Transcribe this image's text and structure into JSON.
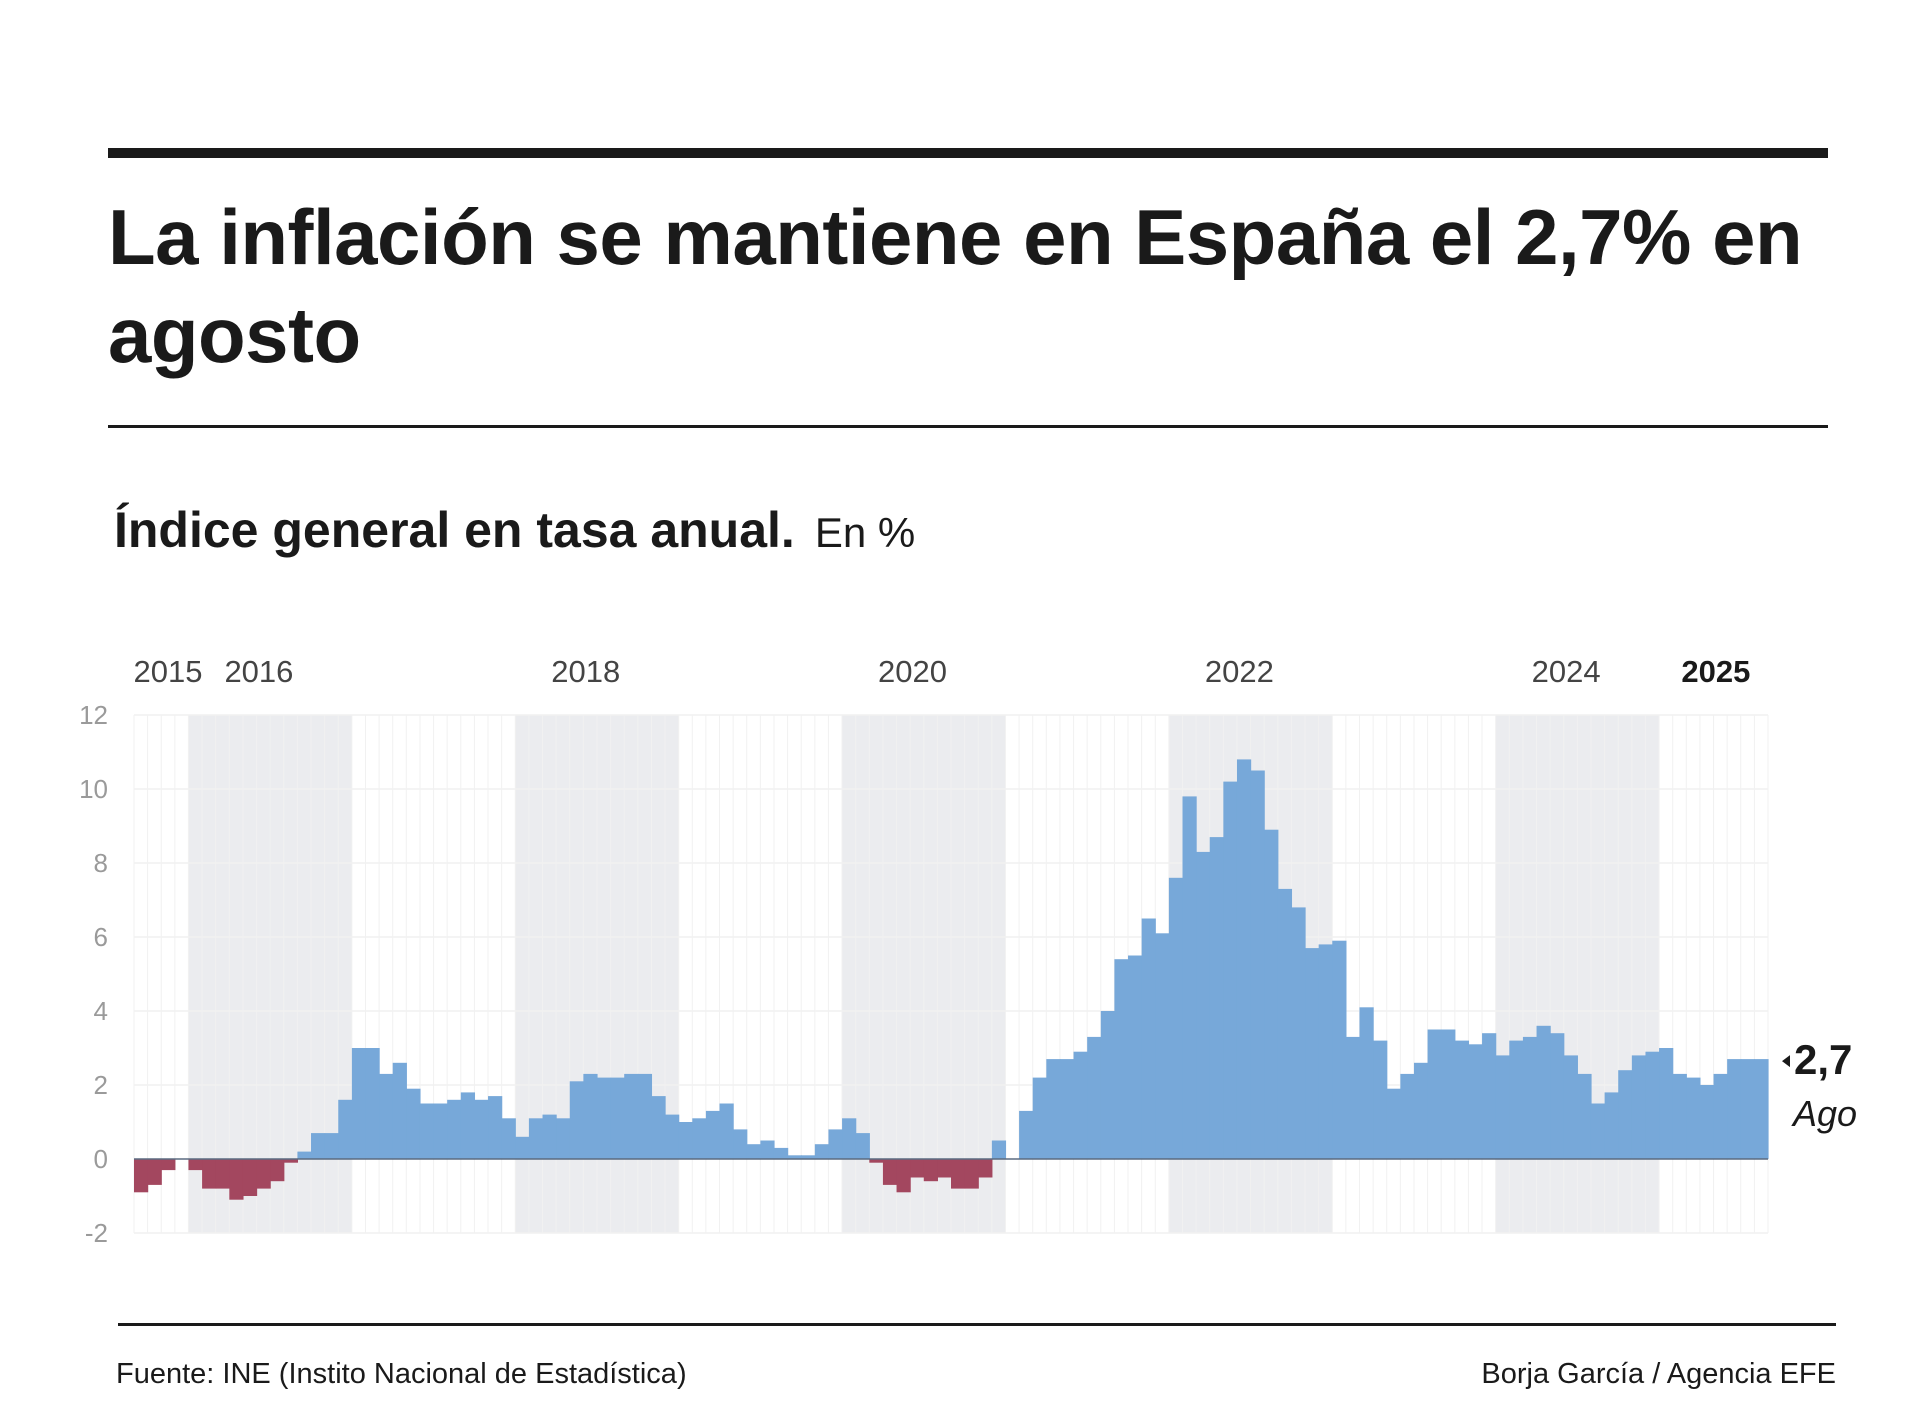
{
  "header": {
    "title": "La inflación se mantiene en España el 2,7% en agosto"
  },
  "subtitle": {
    "main": "Índice general en tasa anual.",
    "unit": "En %"
  },
  "footer": {
    "source": "Fuente: INE (Instito Nacional de Estadística)",
    "credit": "Borja García / Agencia EFE"
  },
  "colors": {
    "positive": "#77a8d9",
    "negative": "#a3475f",
    "band": "#ebecef",
    "grid": "#f1f1f1",
    "tick": "#9a9a9a",
    "year": "#444444"
  },
  "chart_data": {
    "type": "bar",
    "title": "Índice general en tasa anual.",
    "unit": "En %",
    "xlabel": "",
    "ylabel": "",
    "ylim": [
      -2,
      12
    ],
    "yticks": [
      -2,
      0,
      2,
      4,
      6,
      8,
      10,
      12
    ],
    "y_tick_labels": [
      "-2",
      "0",
      "2",
      "4",
      "6",
      "8",
      "10",
      "12"
    ],
    "grid": true,
    "x_start": "2015-09",
    "x_end": "2025-08",
    "year_labels": [
      {
        "year": "2015",
        "month_index": 0,
        "bold": false
      },
      {
        "year": "2016",
        "month_index": 8,
        "bold": false
      },
      {
        "year": "2018",
        "month_index": 32,
        "bold": false
      },
      {
        "year": "2020",
        "month_index": 56,
        "bold": false
      },
      {
        "year": "2022",
        "month_index": 80,
        "bold": false
      },
      {
        "year": "2024",
        "month_index": 104,
        "bold": false
      },
      {
        "year": "2025",
        "month_index": 115,
        "bold": true
      }
    ],
    "shaded_years": [
      {
        "year": "2016",
        "start_index": 4,
        "end_index": 16
      },
      {
        "year": "2018",
        "start_index": 28,
        "end_index": 40
      },
      {
        "year": "2020",
        "start_index": 52,
        "end_index": 64
      },
      {
        "year": "2022",
        "start_index": 76,
        "end_index": 88
      },
      {
        "year": "2024",
        "start_index": 100,
        "end_index": 112
      }
    ],
    "values": [
      -0.9,
      -0.7,
      -0.3,
      0.0,
      -0.3,
      -0.8,
      -0.8,
      -1.1,
      -1.0,
      -0.8,
      -0.6,
      -0.1,
      0.2,
      0.7,
      0.7,
      1.6,
      3.0,
      3.0,
      2.3,
      2.6,
      1.9,
      1.5,
      1.5,
      1.6,
      1.8,
      1.6,
      1.7,
      1.1,
      0.6,
      1.1,
      1.2,
      1.1,
      2.1,
      2.3,
      2.2,
      2.2,
      2.3,
      2.3,
      1.7,
      1.2,
      1.0,
      1.1,
      1.3,
      1.5,
      0.8,
      0.4,
      0.5,
      0.3,
      0.1,
      0.1,
      0.4,
      0.8,
      1.1,
      0.7,
      -0.1,
      -0.7,
      -0.9,
      -0.5,
      -0.6,
      -0.5,
      -0.8,
      -0.8,
      -0.5,
      0.5,
      0.0,
      1.3,
      2.2,
      2.7,
      2.7,
      2.9,
      3.3,
      4.0,
      5.4,
      5.5,
      6.5,
      6.1,
      7.6,
      9.8,
      8.3,
      8.7,
      10.2,
      10.8,
      10.5,
      8.9,
      7.3,
      6.8,
      5.7,
      5.8,
      5.9,
      3.3,
      4.1,
      3.2,
      1.9,
      2.3,
      2.6,
      3.5,
      3.5,
      3.2,
      3.1,
      3.4,
      2.8,
      3.2,
      3.3,
      3.6,
      3.4,
      2.8,
      2.3,
      1.5,
      1.8,
      2.4,
      2.8,
      2.9,
      3.0,
      2.3,
      2.2,
      2.0,
      2.3,
      2.7,
      2.7,
      2.7
    ],
    "annotation": {
      "value": "2,7",
      "label": "Ago"
    }
  }
}
